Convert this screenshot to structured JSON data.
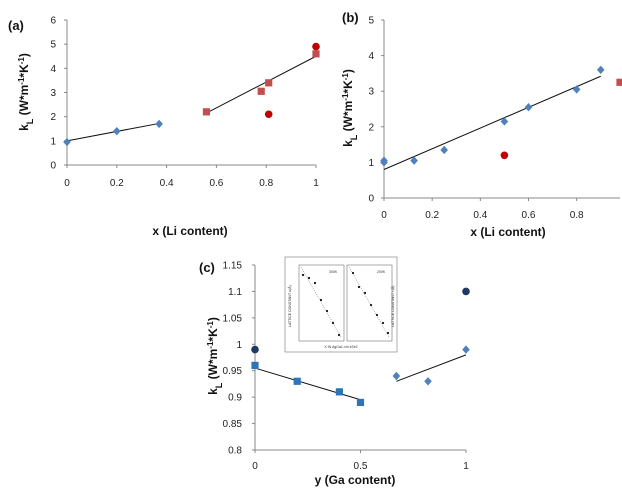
{
  "chart_data": [
    {
      "panel": "(a)",
      "type": "scatter",
      "xlabel": "x (Li content)",
      "ylabel": "kL (W*m-1*K-1)",
      "xlim": [
        0,
        1
      ],
      "ylim": [
        0,
        6
      ],
      "xticks": [
        "0",
        "0.2",
        "0.4",
        "0.6",
        "0.8",
        "1"
      ],
      "yticks": [
        "0",
        "1",
        "2",
        "3",
        "4",
        "5",
        "6"
      ],
      "grid": false,
      "series": [
        {
          "marker": "diamond",
          "color": "#4f81bd",
          "x": [
            0,
            0.2,
            0.37
          ],
          "y": [
            0.95,
            1.4,
            1.7
          ]
        },
        {
          "marker": "square",
          "color": "#c0504d",
          "x": [
            0.56,
            0.78,
            0.81,
            1.0
          ],
          "y": [
            2.2,
            3.05,
            3.4,
            4.6
          ]
        },
        {
          "marker": "circle",
          "color": "#c00000",
          "x": [
            0.81,
            1.0
          ],
          "y": [
            2.1,
            4.9
          ]
        }
      ],
      "trendlines": [
        {
          "x": [
            0,
            0.37
          ],
          "y": [
            1.0,
            1.72
          ]
        },
        {
          "x": [
            0.56,
            1.0
          ],
          "y": [
            2.15,
            4.5
          ]
        }
      ]
    },
    {
      "panel": "(b)",
      "type": "scatter",
      "xlabel": "x (Li content)",
      "ylabel": "kL (W*m-1*K-1)",
      "xlim": [
        0,
        0.98
      ],
      "ylim": [
        0,
        5
      ],
      "xticks": [
        "0",
        "0.2",
        "0.4",
        "0.6",
        "0.8"
      ],
      "yticks": [
        "0",
        "1",
        "2",
        "3",
        "4",
        "5"
      ],
      "grid": false,
      "series": [
        {
          "marker": "diamond",
          "color": "#4f81bd",
          "x": [
            0,
            0,
            0.125,
            0.25,
            0.5,
            0.6,
            0.8,
            0.9
          ],
          "y": [
            1.0,
            1.05,
            1.05,
            1.35,
            2.15,
            2.55,
            3.05,
            3.6
          ]
        },
        {
          "marker": "circle",
          "color": "#c00000",
          "x": [
            0.5
          ],
          "y": [
            1.2
          ]
        },
        {
          "marker": "square",
          "color": "#c0504d",
          "x": [
            0.98
          ],
          "y": [
            3.25
          ]
        }
      ],
      "trendlines": [
        {
          "x": [
            0,
            0.9
          ],
          "y": [
            0.8,
            3.42
          ]
        }
      ]
    },
    {
      "panel": "(c)",
      "type": "scatter",
      "xlabel": "y (Ga content)",
      "ylabel": "kL (W*m-1*K-1)",
      "xlim": [
        0,
        1
      ],
      "ylim": [
        0.8,
        1.15
      ],
      "xticks": [
        "0",
        "0.5",
        "1"
      ],
      "yticks": [
        "0.8",
        "0.85",
        "0.9",
        "0.95",
        "1",
        "1.05",
        "1.1",
        "1.15"
      ],
      "grid": false,
      "series": [
        {
          "marker": "square",
          "color": "#2e75b6",
          "x": [
            0,
            0.2,
            0.4,
            0.5
          ],
          "y": [
            0.96,
            0.93,
            0.91,
            0.89
          ]
        },
        {
          "marker": "diamond",
          "color": "#4f81bd",
          "x": [
            0.67,
            0.82,
            1.0
          ],
          "y": [
            0.94,
            0.93,
            0.99
          ]
        },
        {
          "marker": "circle",
          "color": "#1f3864",
          "x": [
            0,
            1.0
          ],
          "y": [
            0.99,
            1.1
          ]
        }
      ],
      "trendlines": [
        {
          "x": [
            0,
            0.5
          ],
          "y": [
            0.955,
            0.895
          ]
        },
        {
          "x": [
            0.67,
            1.0
          ],
          "y": [
            0.93,
            0.98
          ]
        }
      ],
      "inset": {
        "labels": [
          "300K",
          "200K",
          "LATTICE CONSTANT  a(Å)",
          "LATTICE CONSTANT  c(Å)",
          "X IN AgGa1-xIn xSe2"
        ]
      }
    }
  ]
}
